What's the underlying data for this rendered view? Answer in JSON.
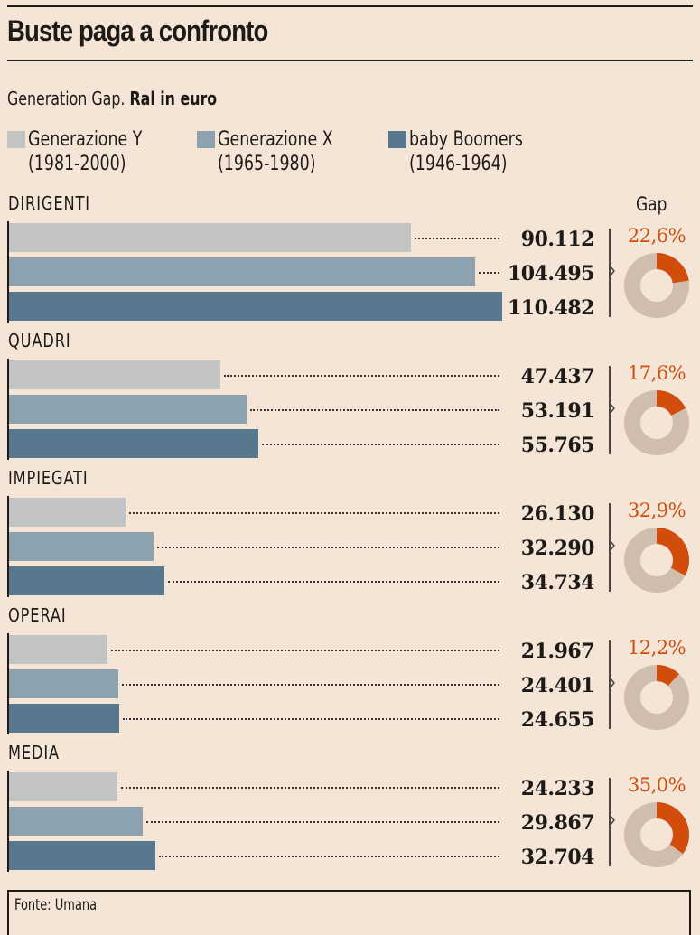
{
  "header": {
    "title": "Buste paga a confronto",
    "subtitle_plain": "Generation Gap. ",
    "subtitle_bold": "Ral in euro"
  },
  "colors": {
    "background": "#f5e5d6",
    "gen_y": "#c2c4c4",
    "gen_x": "#8da2af",
    "boomers": "#58788f",
    "gap_accent": "#d24d0b",
    "donut_rest": "#cfbead"
  },
  "chart_data": {
    "type": "bar",
    "orientation": "horizontal",
    "title": "Buste paga a confronto",
    "subtitle": "Generation Gap. Ral in euro",
    "unit": "euro",
    "xlim": [
      0,
      110482
    ],
    "legend_position": "top",
    "series_names": [
      "Generazione Y",
      "Generazione X",
      "baby Boomers"
    ],
    "legend": [
      {
        "name": "Generazione Y",
        "years": "(1981-2000)",
        "color": "#c2c4c4"
      },
      {
        "name": "Generazione X",
        "years": "(1965-1980)",
        "color": "#8da2af"
      },
      {
        "name": "baby Boomers",
        "years": "(1946-1964)",
        "color": "#58788f"
      }
    ],
    "gap_header": "Gap",
    "categories": [
      {
        "name": "DIRIGENTI",
        "values": [
          90112,
          104495,
          110482
        ],
        "labels": [
          "90.112",
          "104.495",
          "110.482"
        ],
        "gap": 22.6,
        "gap_label": "22,6%"
      },
      {
        "name": "QUADRI",
        "values": [
          47437,
          53191,
          55765
        ],
        "labels": [
          "47.437",
          "53.191",
          "55.765"
        ],
        "gap": 17.6,
        "gap_label": "17,6%"
      },
      {
        "name": "IMPIEGATI",
        "values": [
          26130,
          32290,
          34734
        ],
        "labels": [
          "26.130",
          "32.290",
          "34.734"
        ],
        "gap": 32.9,
        "gap_label": "32,9%"
      },
      {
        "name": "OPERAI",
        "values": [
          21967,
          24401,
          24655
        ],
        "labels": [
          "21.967",
          "24.401",
          "24.655"
        ],
        "gap": 12.2,
        "gap_label": "12,2%"
      },
      {
        "name": "MEDIA",
        "values": [
          24233,
          29867,
          32704
        ],
        "labels": [
          "24.233",
          "29.867",
          "32.704"
        ],
        "gap": 35.0,
        "gap_label": "35,0%"
      }
    ]
  },
  "footer": {
    "source": "Fonte: Umana"
  }
}
